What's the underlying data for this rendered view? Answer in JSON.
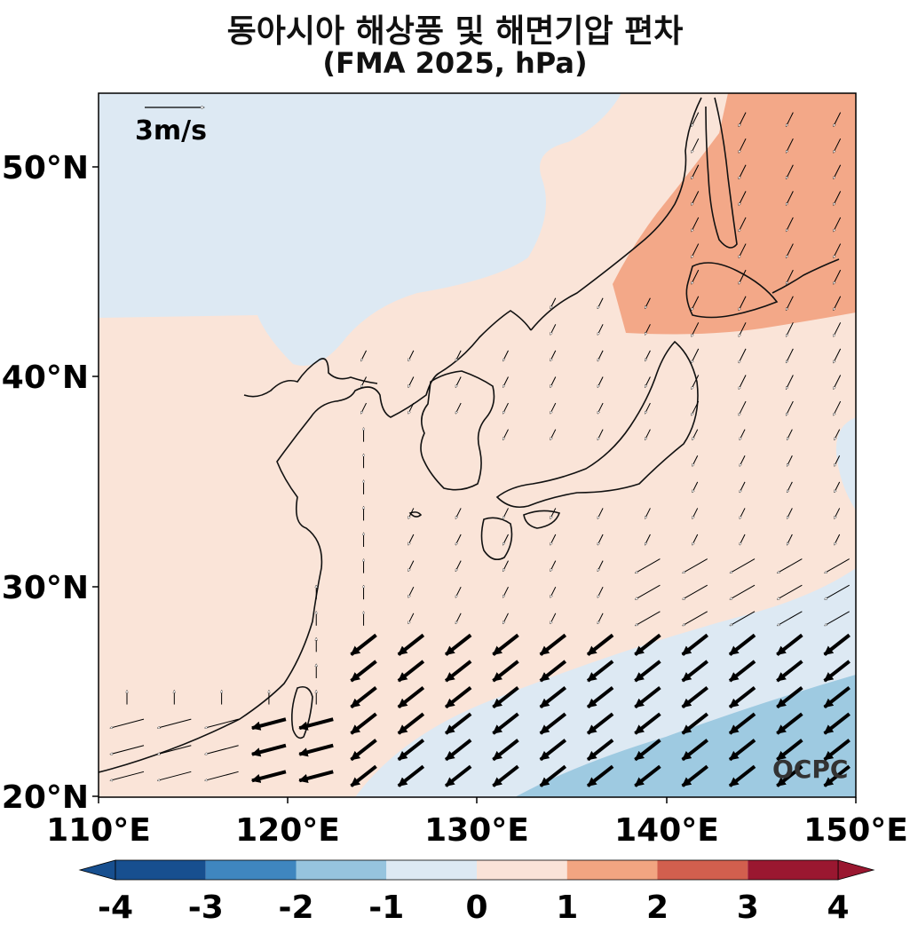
{
  "title": "동아시아 해상풍 및 해면기압 편차",
  "subtitle": "(FMA 2025, hPa)",
  "map": {
    "lon_range": [
      110,
      150
    ],
    "lat_range": [
      20,
      53.5
    ],
    "lat_ticks": [
      "20°N",
      "30°N",
      "40°N",
      "50°N"
    ],
    "lon_ticks": [
      "110°E",
      "120°E",
      "130°E",
      "140°E",
      "150°E"
    ],
    "reference_vector": {
      "label": "3m/s",
      "speed": 3
    },
    "watermark": "OCPC"
  },
  "colorbar": {
    "ticks": [
      "-4",
      "-3",
      "-2",
      "-1",
      "0",
      "1",
      "2",
      "3",
      "4"
    ],
    "colors": [
      "#174f8f",
      "#3f86bf",
      "#96c4de",
      "#dde9f3",
      "#fae3d8",
      "#f2a581",
      "#d25f4e",
      "#9a1730"
    ],
    "extend": "both"
  },
  "anomaly_colors": {
    "neg1": "#dde9f3",
    "neg2": "#9ecae1",
    "pos1": "#fae4d8",
    "pos2": "#f3a888"
  }
}
